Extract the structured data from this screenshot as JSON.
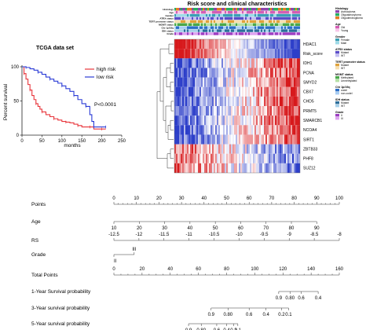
{
  "chart_data": [
    {
      "type": "line",
      "title": "TCGA data set",
      "xlabel": "months",
      "ylabel": "Percent survival",
      "xlim": [
        0,
        250
      ],
      "ylim": [
        0,
        100
      ],
      "x_ticks": [
        "0",
        "50",
        "100",
        "150",
        "200",
        "250"
      ],
      "y_ticks": [
        "0",
        "50",
        "100"
      ],
      "pvalue": "P<0.0001",
      "legend_position": "top-right",
      "series": [
        {
          "name": "high risk",
          "color": "#e8343a",
          "x": [
            0,
            5,
            10,
            15,
            20,
            25,
            30,
            35,
            40,
            45,
            50,
            60,
            70,
            80,
            90,
            100,
            110,
            120,
            130,
            140,
            150,
            160,
            170,
            180,
            190,
            200,
            210
          ],
          "y": [
            100,
            90,
            82,
            74,
            66,
            58,
            52,
            46,
            42,
            38,
            34,
            30,
            27,
            24,
            22,
            20,
            19,
            18,
            16,
            14,
            12,
            12,
            12,
            9,
            9,
            9,
            9
          ]
        },
        {
          "name": "low risk",
          "color": "#2a3bd6",
          "x": [
            0,
            10,
            20,
            30,
            40,
            50,
            60,
            70,
            80,
            90,
            100,
            110,
            120,
            130,
            140,
            150,
            160,
            170,
            175,
            180,
            190,
            200,
            210
          ],
          "y": [
            100,
            99,
            97,
            95,
            92,
            89,
            85,
            82,
            79,
            76,
            72,
            68,
            64,
            58,
            52,
            46,
            42,
            30,
            20,
            12,
            12,
            12,
            12
          ]
        }
      ]
    },
    {
      "type": "heatmap",
      "title": "Risk score and clinical characteristics",
      "annotation_rows": [
        "Histology",
        "Age",
        "Gender",
        "ATRX status",
        "TERT promoter status",
        "MGMT status",
        "Chr 1p/19q",
        "IDH status",
        "Grade"
      ],
      "rows": [
        "HDAC1",
        "Risk_score",
        "IDH1",
        "PCNA",
        "SMYD2",
        "CBX7",
        "CHD5",
        "PRMT5",
        "SMARCB1",
        "NCOA4",
        "SIRT1",
        "ZBTB33",
        "PHF8",
        "SUZ12"
      ],
      "colors": {
        "high": "#d7191c",
        "mid": "#ffffff",
        "low": "#2c3ec9"
      },
      "legend": [
        {
          "title": "Histology",
          "items": [
            {
              "label": "Astrocytoma",
              "color": "#8e44ad"
            },
            {
              "label": "Oligoastrocytoma",
              "color": "#27ae60"
            },
            {
              "label": "Oligodendroglioma",
              "color": "#e67e22"
            }
          ]
        },
        {
          "title": "Age",
          "items": [
            {
              "label": "Old",
              "color": "#d35db5"
            },
            {
              "label": "Young",
              "color": "#f7c6e8"
            }
          ]
        },
        {
          "title": "Gender",
          "items": [
            {
              "label": "Female",
              "color": "#3aa0b5"
            },
            {
              "label": "Male",
              "color": "#9fdbe8"
            }
          ]
        },
        {
          "title": "ATRX status",
          "items": [
            {
              "label": "Mutant",
              "color": "#5b4ec9"
            },
            {
              "label": "WT",
              "color": "#c3bdf2"
            }
          ]
        },
        {
          "title": "TERT promoter status",
          "items": [
            {
              "label": "Mutant",
              "color": "#e0a23a"
            },
            {
              "label": "WT",
              "color": "#f7e0b0"
            }
          ]
        },
        {
          "title": "MGMT status",
          "items": [
            {
              "label": "Methylated",
              "color": "#4aa84a"
            },
            {
              "label": "Unmethylated",
              "color": "#b6e0a6"
            }
          ]
        },
        {
          "title": "Chr 1p/19q",
          "items": [
            {
              "label": "codel",
              "color": "#2b6fc7"
            },
            {
              "label": "non-codel",
              "color": "#a8cdf2"
            }
          ]
        },
        {
          "title": "IDH status",
          "items": [
            {
              "label": "Mutant",
              "color": "#2c6e9b"
            },
            {
              "label": "WT",
              "color": "#a7d0ea"
            }
          ]
        },
        {
          "title": "Grade",
          "items": [
            {
              "label": "II",
              "color": "#9d3ec2"
            },
            {
              "label": "III",
              "color": "#dda3f0"
            }
          ]
        }
      ]
    },
    {
      "type": "nomogram",
      "rows": [
        {
          "label": "Points",
          "kind": "scale",
          "min": 0,
          "max": 100,
          "ticks": [
            "0",
            "10",
            "20",
            "30",
            "40",
            "50",
            "60",
            "70",
            "80",
            "90",
            "100"
          ],
          "label_pos": "above"
        },
        {
          "label": "Age",
          "kind": "scale",
          "ticks": [
            "10",
            "20",
            "30",
            "40",
            "50",
            "60",
            "70",
            "80",
            "90"
          ],
          "points_start": 0,
          "points_end": 90,
          "label_pos": "below"
        },
        {
          "label": "RS",
          "kind": "scale",
          "ticks": [
            "-12.5",
            "-12",
            "-11.5",
            "-11",
            "-10.5",
            "-10",
            "-9.5",
            "-9",
            "-8.5",
            "-8"
          ],
          "points_start": 0,
          "points_end": 100,
          "label_pos": "above"
        },
        {
          "label": "Grade",
          "kind": "category",
          "ticks": [
            "II",
            "III"
          ],
          "points": [
            0,
            9
          ]
        },
        {
          "label": "Total Points",
          "kind": "scale",
          "min": 0,
          "max": 160,
          "ticks": [
            "0",
            "20",
            "40",
            "60",
            "80",
            "100",
            "120",
            "140",
            "160"
          ],
          "label_pos": "above"
        },
        {
          "label": "1-Year Survival probability",
          "kind": "prob",
          "ticks": [
            "0.9",
            "0.80",
            "0.6",
            "0.4"
          ],
          "total_points": [
            117,
            125,
            133,
            145
          ]
        },
        {
          "label": "3-Year survival probability",
          "kind": "prob",
          "ticks": [
            "0.9",
            "0.80",
            "0.6",
            "0.4",
            "0.2",
            "0.1"
          ],
          "total_points": [
            69,
            81,
            96,
            108,
            119,
            124
          ]
        },
        {
          "label": "5-Year survival probability",
          "kind": "prob",
          "ticks": [
            "0.9",
            "0.80",
            "0.6",
            "0.4",
            "0.2",
            "0.1"
          ],
          "total_points": [
            53,
            62,
            73,
            80,
            85,
            88
          ]
        }
      ]
    }
  ]
}
